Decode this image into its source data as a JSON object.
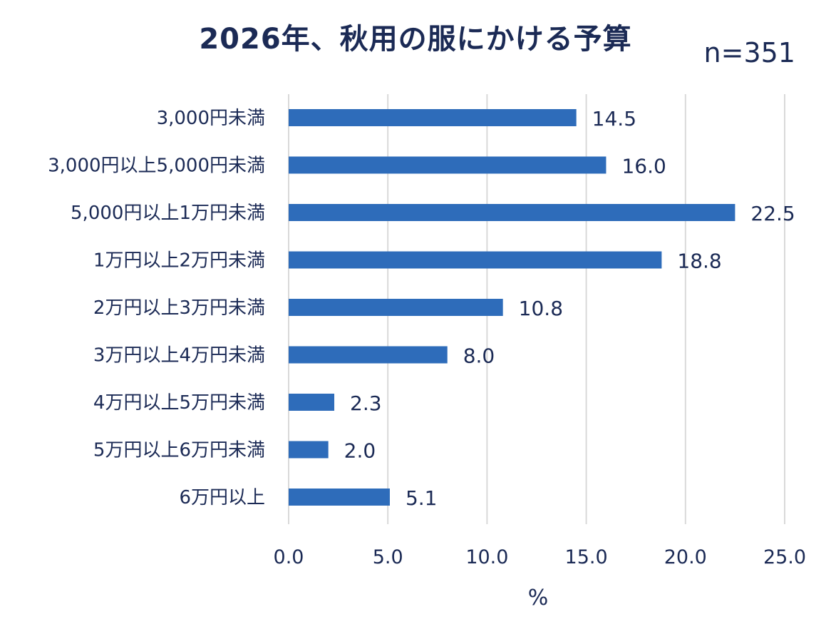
{
  "chart_data": {
    "type": "bar",
    "orientation": "horizontal",
    "title": "2026年、秋用の服にかける予算",
    "note": "n=351",
    "categories": [
      "3,000円未満",
      "3,000円以上5,000円未満",
      "5,000円以上1万円未満",
      "1万円以上2万円未満",
      "2万円以上3万円未満",
      "3万円以上4万円未満",
      "4万円以上5万円未満",
      "5万円以上6万円未満",
      "6万円以上"
    ],
    "values": [
      14.5,
      16.0,
      22.5,
      18.8,
      10.8,
      8.0,
      2.3,
      2.0,
      5.1
    ],
    "value_labels": [
      "14.5",
      "16.0",
      "22.5",
      "18.8",
      "10.8",
      "8.0",
      "2.3",
      "2.0",
      "5.1"
    ],
    "xlabel": "%",
    "ylabel": "",
    "xlim": [
      0,
      25
    ],
    "xticks": [
      0,
      5,
      10,
      15,
      20,
      25
    ],
    "xtick_labels": [
      "0.0",
      "5.0",
      "10.0",
      "15.0",
      "20.0",
      "25.0"
    ],
    "grid": true,
    "legend": "none",
    "colors": {
      "bar": "#2e6cba",
      "grid": "#d9d9d9",
      "text": "#1b2a55"
    }
  }
}
